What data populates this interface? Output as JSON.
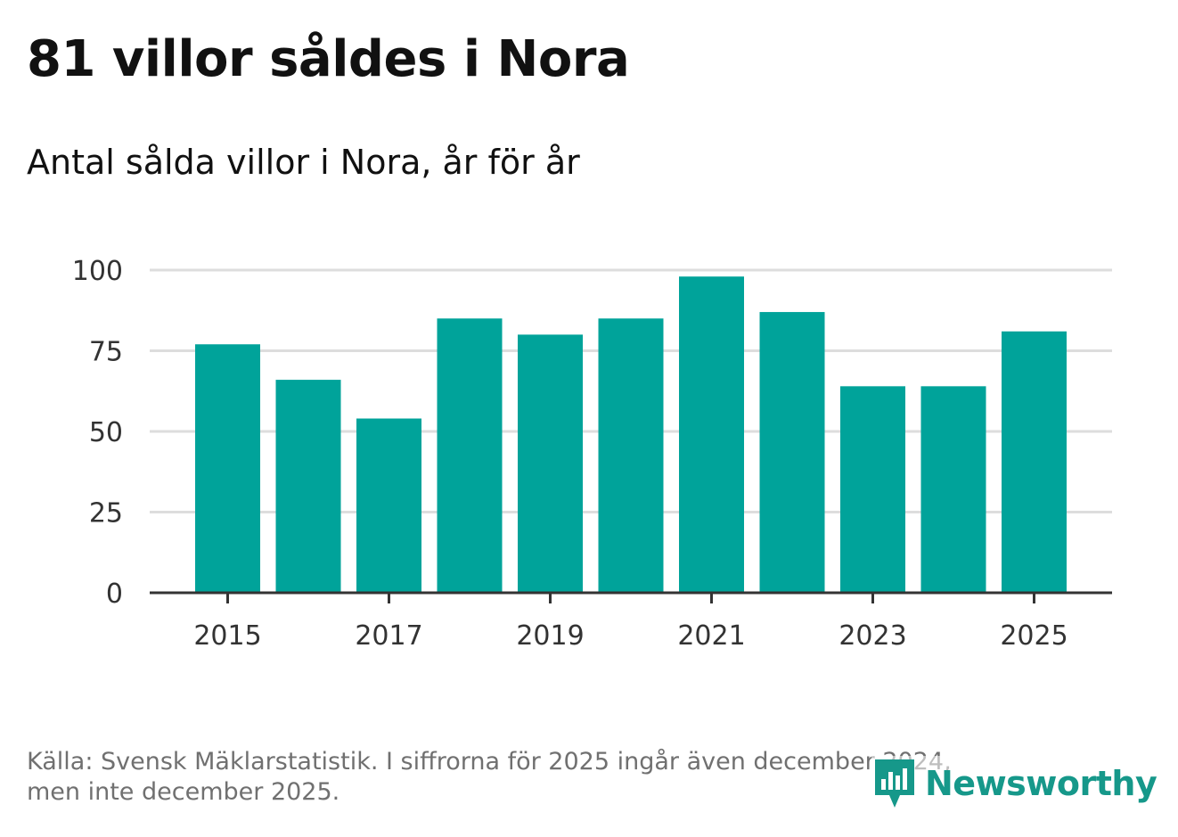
{
  "header": {
    "title": "81 villor såldes i Nora",
    "subtitle": "Antal sålda villor i Nora, år för år"
  },
  "footer": {
    "source_line1": "Källa: Svensk Mäklarstatistik. I siffrorna för 2025 ingår även december 2024,",
    "source_line2": "men inte december 2025."
  },
  "logo": {
    "text": "Newsworthy",
    "icon": "bar-chart-speech-bubble-icon"
  },
  "colors": {
    "bar": "#00a39a",
    "axis": "#333333",
    "grid": "#dddddd",
    "tick_label": "#333333",
    "logo": "#16988a"
  },
  "chart_data": {
    "type": "bar",
    "title": "81 villor såldes i Nora",
    "subtitle": "Antal sålda villor i Nora, år för år",
    "xlabel": "",
    "ylabel": "",
    "categories": [
      "2015",
      "2016",
      "2017",
      "2018",
      "2019",
      "2020",
      "2021",
      "2022",
      "2023",
      "2024",
      "2025"
    ],
    "values": [
      77,
      66,
      54,
      85,
      80,
      85,
      98,
      87,
      64,
      64,
      81
    ],
    "x_tick_labels": [
      "2015",
      "2017",
      "2019",
      "2021",
      "2023",
      "2025"
    ],
    "yticks": [
      0,
      25,
      50,
      75,
      100
    ],
    "ylim": [
      0,
      100
    ],
    "grid": true
  }
}
